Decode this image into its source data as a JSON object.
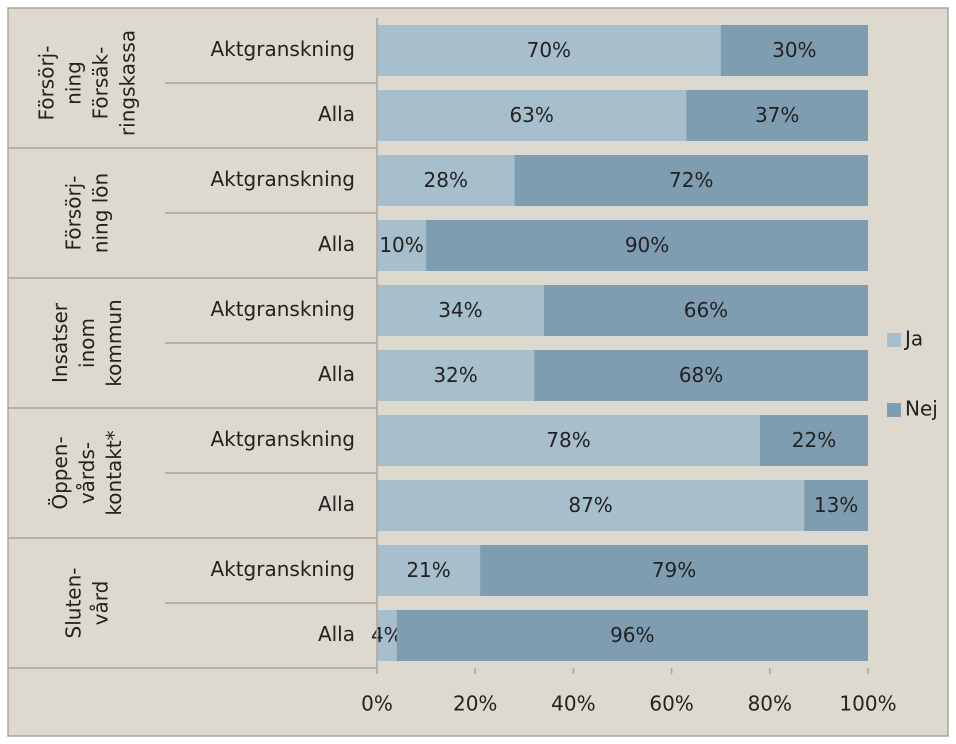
{
  "chart_data": {
    "type": "bar",
    "orientation": "horizontal",
    "stacked": true,
    "groups": [
      {
        "label": [
          "Försörj-",
          "ning",
          "Försäk-",
          "ringskassa"
        ]
      },
      {
        "label": [
          "Försörj-",
          "ning lön"
        ]
      },
      {
        "label": [
          "Insatser",
          "inom",
          "kommun"
        ]
      },
      {
        "label": [
          "Öppen-",
          "vårds-",
          "kontakt*"
        ]
      },
      {
        "label": [
          "Sluten-",
          "vård"
        ]
      }
    ],
    "categories": [
      "Aktgranskning",
      "Alla",
      "Aktgranskning",
      "Alla",
      "Aktgranskning",
      "Alla",
      "Aktgranskning",
      "Alla",
      "Aktgranskning",
      "Alla"
    ],
    "series": [
      {
        "name": "Ja",
        "color": "#a7bfcc",
        "values": [
          70,
          63,
          28,
          10,
          34,
          32,
          78,
          87,
          21,
          4
        ],
        "value_labels": [
          "70%",
          "63%",
          "28%",
          "10%",
          "34%",
          "32%",
          "78%",
          "87%",
          "21%",
          "4%"
        ]
      },
      {
        "name": "Nej",
        "color": "#7f9db0",
        "values": [
          30,
          37,
          72,
          90,
          66,
          68,
          22,
          13,
          79,
          96
        ],
        "value_labels": [
          "30%",
          "37%",
          "72%",
          "90%",
          "66%",
          "68%",
          "22%",
          "13%",
          "79%",
          "96%"
        ]
      }
    ],
    "xlim": [
      0,
      100
    ],
    "xticks": [
      {
        "value": 0,
        "label": "0%"
      },
      {
        "value": 20,
        "label": "20%"
      },
      {
        "value": 40,
        "label": "40%"
      },
      {
        "value": 60,
        "label": "60%"
      },
      {
        "value": 80,
        "label": "80%"
      },
      {
        "value": 100,
        "label": "100%"
      }
    ],
    "legend": "right"
  }
}
